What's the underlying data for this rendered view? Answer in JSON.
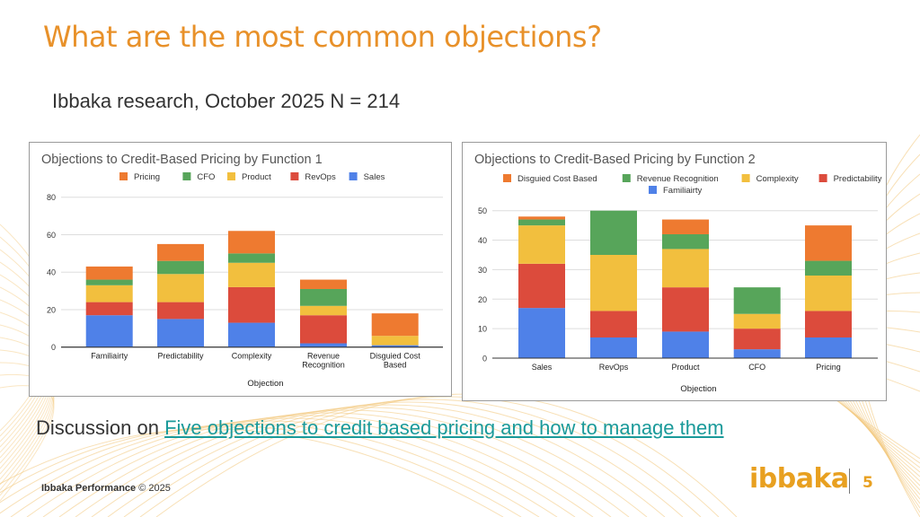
{
  "slide": {
    "title": "What are the most common objections?",
    "subtitle": "Ibbaka research, October 2025 N = 214",
    "discussion_prefix": "Discussion on ",
    "discussion_link": "Five objections to credit based pricing and how to manage them",
    "footer_brand": "Ibbaka Performance",
    "footer_copyright": "© 2025",
    "logo_text": "ibbaka",
    "page_number": "5",
    "accent_color": "#E8912A"
  },
  "chart_data": [
    {
      "type": "bar",
      "stacked": true,
      "title": "Objections to Credit-Based Pricing by Function 1",
      "xlabel": "Objection",
      "ylabel": "",
      "ylim": [
        0,
        80
      ],
      "yticks": [
        0,
        20,
        40,
        60,
        80
      ],
      "grid": true,
      "legend_placement": "top",
      "categories": [
        "Familiairty",
        "Predictability",
        "Complexity",
        "Revenue Recognition",
        "Disguied Cost Based"
      ],
      "series": [
        {
          "name": "Sales",
          "color": "#4F81E8",
          "values": [
            17,
            15,
            13,
            2,
            1
          ]
        },
        {
          "name": "RevOps",
          "color": "#DC4B3C",
          "values": [
            7,
            9,
            19,
            15,
            0
          ]
        },
        {
          "name": "Product",
          "color": "#F2BF3E",
          "values": [
            9,
            15,
            13,
            5,
            5
          ]
        },
        {
          "name": "CFO",
          "color": "#57A55A",
          "values": [
            3,
            7,
            5,
            9,
            0
          ]
        },
        {
          "name": "Pricing",
          "color": "#EE7A30",
          "values": [
            7,
            9,
            12,
            5,
            12
          ]
        }
      ],
      "legend_order": [
        "Pricing",
        "CFO",
        "Product",
        "RevOps",
        "Sales"
      ]
    },
    {
      "type": "bar",
      "stacked": true,
      "title": "Objections to Credit-Based Pricing by Function 2",
      "xlabel": "Objection",
      "ylabel": "",
      "ylim": [
        0,
        50
      ],
      "yticks": [
        0,
        10,
        20,
        30,
        40,
        50
      ],
      "grid": true,
      "legend_placement": "top",
      "categories": [
        "Sales",
        "RevOps",
        "Product",
        "CFO",
        "Pricing"
      ],
      "series": [
        {
          "name": "Familiairty",
          "color": "#4F81E8",
          "values": [
            17,
            7,
            9,
            3,
            7
          ]
        },
        {
          "name": "Predictability",
          "color": "#DC4B3C",
          "values": [
            15,
            9,
            15,
            7,
            9
          ]
        },
        {
          "name": "Complexity",
          "color": "#F2BF3E",
          "values": [
            13,
            19,
            13,
            5,
            12
          ]
        },
        {
          "name": "Revenue Recognition",
          "color": "#57A55A",
          "values": [
            2,
            15,
            5,
            9,
            5
          ]
        },
        {
          "name": "Disguied Cost Based",
          "color": "#EE7A30",
          "values": [
            1,
            0,
            5,
            0,
            12
          ]
        }
      ],
      "legend_order": [
        "Disguied Cost Based",
        "Revenue Recognition",
        "Complexity",
        "Predictability",
        "Familiairty"
      ]
    }
  ]
}
